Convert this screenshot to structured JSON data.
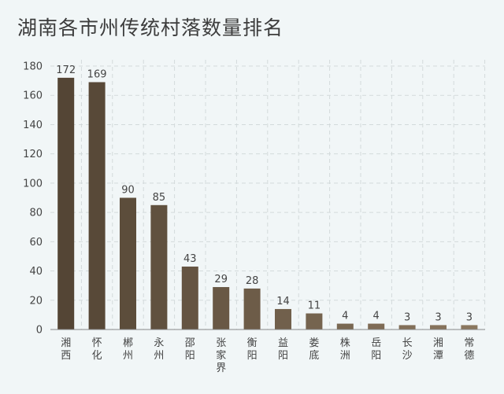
{
  "chart_data": {
    "type": "bar",
    "title": "湖南各市州传统村落数量排名",
    "categories": [
      "湘西",
      "怀化",
      "郴州",
      "永州",
      "邵阳",
      "张家界",
      "衡阳",
      "益阳",
      "娄底",
      "株洲",
      "岳阳",
      "长沙",
      "湘潭",
      "常德"
    ],
    "values": [
      172,
      169,
      90,
      85,
      43,
      29,
      28,
      14,
      11,
      4,
      4,
      3,
      3,
      3
    ],
    "data_labels": [
      "172",
      "169",
      "90",
      "85",
      "43",
      "29",
      "28",
      "14",
      "11",
      "4",
      "4",
      "3",
      "3",
      "3"
    ],
    "yticks": [
      0,
      20,
      40,
      60,
      80,
      100,
      120,
      140,
      160,
      180
    ],
    "ytick_labels": [
      "0",
      "20",
      "40",
      "60",
      "80",
      "100",
      "120",
      "140",
      "160",
      "180"
    ],
    "ylim": [
      0,
      180
    ],
    "xlabel": "",
    "ylabel": "",
    "grid": true,
    "colors": {
      "bar_dark": "#544535",
      "bar_light": "#8a775f",
      "grid": "#d3dadb",
      "axis": "#888888"
    }
  }
}
